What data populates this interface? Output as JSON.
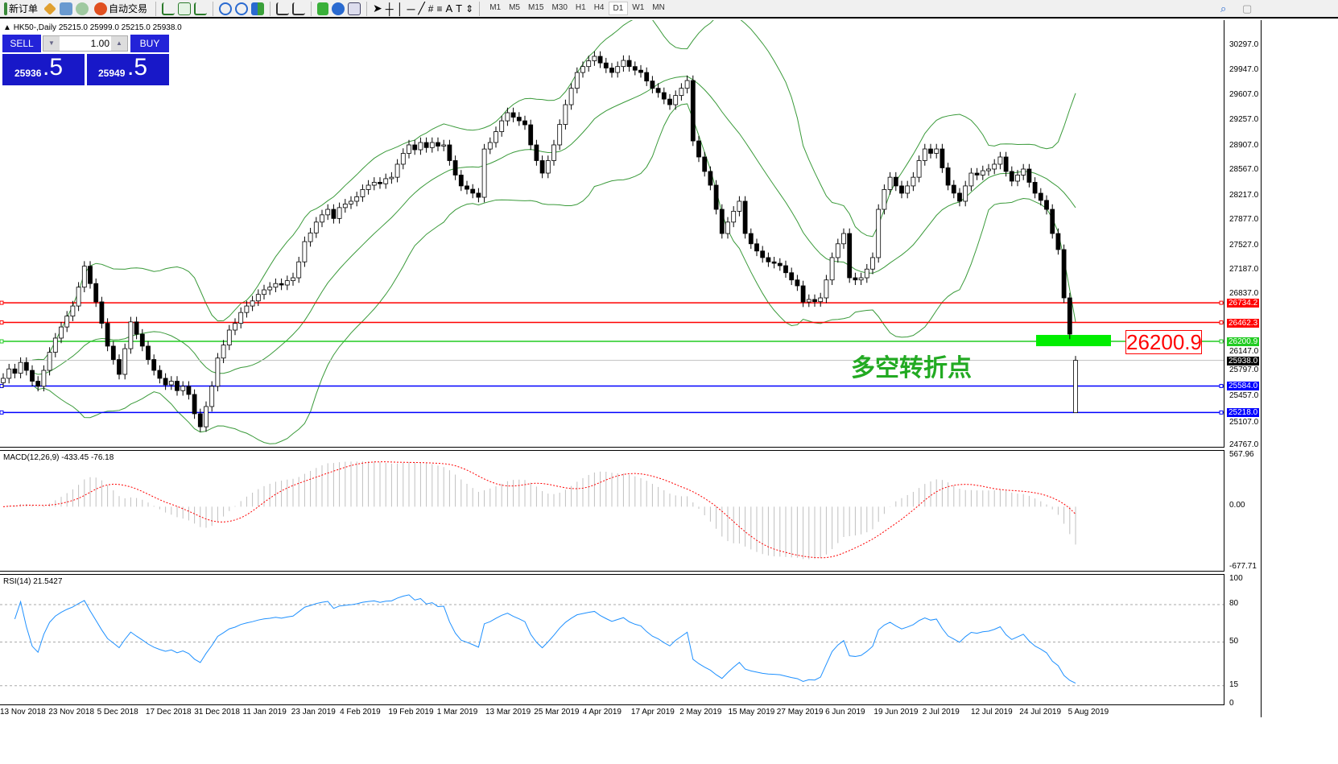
{
  "toolbar": {
    "new_order": "新订单",
    "auto_trade": "自动交易",
    "timeframes": [
      "M1",
      "M5",
      "M15",
      "M30",
      "H1",
      "H4",
      "D1",
      "W1",
      "MN"
    ],
    "active_timeframe": "D1"
  },
  "symbol_info": "HK50-,Daily  25215.0 25999.0 25215.0 25938.0",
  "trade_panel": {
    "sell_label": "SELL",
    "buy_label": "BUY",
    "volume": "1.00",
    "sell_price_main": "25936",
    "sell_price_frac": ".5",
    "buy_price_main": "25949",
    "buy_price_frac": ".5"
  },
  "price_axis": [
    "30297.0",
    "29947.0",
    "29607.0",
    "29257.0",
    "28907.0",
    "28567.0",
    "28217.0",
    "27877.0",
    "27527.0",
    "27187.0",
    "26837.0",
    "26147.0",
    "25797.0",
    "25457.0",
    "25107.0",
    "24767.0"
  ],
  "hlines": [
    {
      "price": 26734.2,
      "label": "26734.2",
      "color": "#ff0000"
    },
    {
      "price": 26462.3,
      "label": "26462.3",
      "color": "#ff0000"
    },
    {
      "price": 26200.9,
      "label": "26200.9",
      "color": "#22cc22"
    },
    {
      "price": 25938.0,
      "label": "25938.0",
      "color": "#000000",
      "current": true
    },
    {
      "price": 25584.0,
      "label": "25584.0",
      "color": "#0000ff"
    },
    {
      "price": 25218.0,
      "label": "25218.0",
      "color": "#0000ff"
    }
  ],
  "annotation": {
    "text": "多空转折点",
    "big_label": "26200.9",
    "text_color": "#22aa22",
    "label_color": "#ff0000",
    "zone_color": "#00ee00"
  },
  "chart_data": {
    "type": "candlestick",
    "symbol": "HK50-",
    "timeframe": "Daily",
    "ylim": [
      24767,
      30297
    ],
    "closes": [
      25690,
      25820,
      25760,
      25910,
      25800,
      25650,
      25580,
      25800,
      26050,
      26246,
      26400,
      26550,
      26690,
      26950,
      27240,
      27000,
      26747,
      26450,
      26135,
      25950,
      25745,
      26100,
      26470,
      26300,
      26135,
      25950,
      25800,
      25690,
      25600,
      25650,
      25520,
      25580,
      25467,
      25200,
      25020,
      25300,
      25580,
      25970,
      26150,
      26357,
      26450,
      26600,
      26690,
      26760,
      26850,
      26913,
      26950,
      27000,
      26980,
      27040,
      27080,
      27300,
      27580,
      27700,
      27850,
      27950,
      28026,
      27900,
      28050,
      28100,
      28138,
      28200,
      28300,
      28360,
      28400,
      28380,
      28450,
      28470,
      28650,
      28800,
      28917,
      28850,
      28950,
      28880,
      28950,
      28900,
      28917,
      28700,
      28500,
      28350,
      28304,
      28250,
      28193,
      28860,
      28950,
      29100,
      29250,
      29362,
      29300,
      29250,
      29195,
      28917,
      28700,
      28527,
      28700,
      28917,
      29200,
      29473,
      29700,
      29918,
      30000,
      30080,
      30141,
      30050,
      29980,
      29918,
      30000,
      30085,
      30000,
      29950,
      29918,
      29800,
      29700,
      29640,
      29550,
      29473,
      29600,
      29700,
      29807,
      28972,
      28750,
      28550,
      28360,
      28026,
      27692,
      27850,
      28000,
      28138,
      27692,
      27550,
      27450,
      27359,
      27300,
      27280,
      27247,
      27150,
      27050,
      26969,
      26746,
      26780,
      26750,
      26802,
      27050,
      27359,
      27550,
      27692,
      27080,
      27050,
      27080,
      27200,
      27359,
      28026,
      28300,
      28470,
      28350,
      28249,
      28350,
      28470,
      28700,
      28861,
      28800,
      28861,
      28600,
      28360,
      28250,
      28138,
      28350,
      28527,
      28500,
      28560,
      28583,
      28650,
      28750,
      28550,
      28416,
      28500,
      28583,
      28400,
      28249,
      28150,
      28026,
      27692,
      27470,
      26802,
      26301,
      25938
    ],
    "last_bar": {
      "open": 25215.0,
      "high": 25999.0,
      "low": 25215.0,
      "close": 25938.0
    },
    "bollinger": {
      "period": 20,
      "deviation": 2,
      "color": "#3a9a3a"
    },
    "x_labels": [
      "13 Nov 2018",
      "23 Nov 2018",
      "5 Dec 2018",
      "17 Dec 2018",
      "31 Dec 2018",
      "11 Jan 2019",
      "23 Jan 2019",
      "4 Feb 2019",
      "19 Feb 2019",
      "1 Mar 2019",
      "13 Mar 2019",
      "25 Mar 2019",
      "4 Apr 2019",
      "17 Apr 2019",
      "2 May 2019",
      "15 May 2019",
      "27 May 2019",
      "6 Jun 2019",
      "19 Jun 2019",
      "2 Jul 2019",
      "12 Jul 2019",
      "24 Jul 2019",
      "5 Aug 2019"
    ]
  },
  "macd": {
    "title": "MACD(12,26,9) -433.45 -76.18",
    "axis": [
      "567.96",
      "0.00",
      "-677.71"
    ],
    "ylim": [
      -677.71,
      567.96
    ],
    "signal_color": "#ff0000",
    "hist_color": "#c0c0c0"
  },
  "rsi": {
    "title": "RSI(14) 21.5427",
    "axis": [
      "100",
      "80",
      "50",
      "15",
      "0"
    ],
    "levels": [
      80,
      50,
      15
    ],
    "color": "#1e90ff"
  }
}
